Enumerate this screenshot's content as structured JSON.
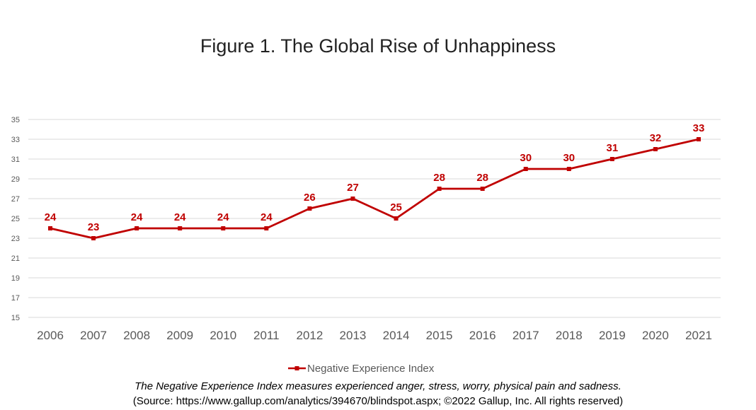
{
  "chart_data": {
    "type": "line",
    "title": "Figure 1. The Global Rise of Unhappiness",
    "categories": [
      "2006",
      "2007",
      "2008",
      "2009",
      "2010",
      "2011",
      "2012",
      "2013",
      "2014",
      "2015",
      "2016",
      "2017",
      "2018",
      "2019",
      "2020",
      "2021"
    ],
    "series": [
      {
        "name": "Negative Experience Index",
        "values": [
          24,
          23,
          24,
          24,
          24,
          24,
          26,
          27,
          25,
          28,
          28,
          30,
          30,
          31,
          32,
          33
        ],
        "color": "#c00000"
      }
    ],
    "yticks": [
      "15",
      "17",
      "19",
      "21",
      "23",
      "25",
      "27",
      "29",
      "31",
      "33",
      "35"
    ],
    "ylim": [
      15,
      35
    ],
    "grid": true,
    "legend_position": "bottom"
  },
  "footnote": {
    "line1": "The Negative Experience Index measures experienced anger, stress, worry, physical pain and sadness.",
    "line2": "(Source: https://www.gallup.com/analytics/394670/blindspot.aspx; ©2022 Gallup, Inc. All rights reserved)"
  }
}
